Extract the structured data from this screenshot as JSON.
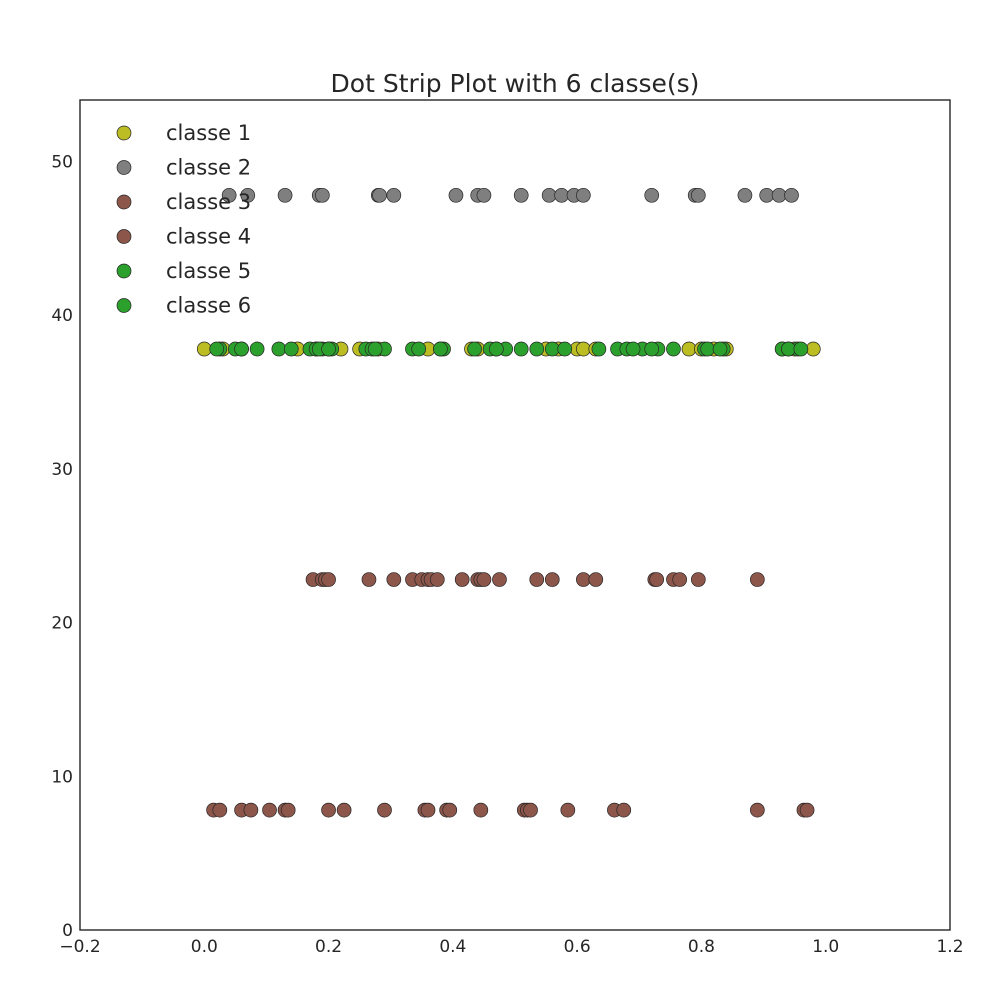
{
  "chart_data": {
    "type": "scatter",
    "title": "Dot Strip Plot with 6 classe(s)",
    "xlabel": "",
    "ylabel": "",
    "xlim": [
      -0.2,
      1.2
    ],
    "ylim": [
      0,
      54
    ],
    "xticks": [
      -0.2,
      0.0,
      0.2,
      0.4,
      0.6,
      0.8,
      1.0,
      1.2
    ],
    "xtick_labels": [
      "−0.2",
      "0.0",
      "0.2",
      "0.4",
      "0.6",
      "0.8",
      "1.0",
      "1.2"
    ],
    "yticks": [
      0,
      10,
      20,
      30,
      40,
      50
    ],
    "ytick_labels": [
      "0",
      "10",
      "20",
      "30",
      "40",
      "50"
    ],
    "grid": false,
    "legend_position": "top-left",
    "series": [
      {
        "name": "classe 1",
        "color": "#bcbd22",
        "y": 37.8,
        "x": [
          0.0,
          0.03,
          0.06,
          0.15,
          0.18,
          0.2,
          0.22,
          0.25,
          0.28,
          0.36,
          0.38,
          0.43,
          0.44,
          0.47,
          0.55,
          0.57,
          0.6,
          0.61,
          0.63,
          0.78,
          0.8,
          0.82,
          0.84,
          0.93,
          0.95,
          0.98
        ]
      },
      {
        "name": "classe 2",
        "color": "#7f7f7f",
        "y": 47.8,
        "x": [
          0.04,
          0.07,
          0.13,
          0.185,
          0.19,
          0.28,
          0.282,
          0.305,
          0.405,
          0.44,
          0.45,
          0.51,
          0.555,
          0.575,
          0.595,
          0.61,
          0.72,
          0.79,
          0.795,
          0.87,
          0.905,
          0.925,
          0.945
        ]
      },
      {
        "name": "classe 3",
        "color": "#8c564b",
        "y": 22.8,
        "x": [
          0.175,
          0.19,
          0.195,
          0.2,
          0.265,
          0.305,
          0.335,
          0.35,
          0.36,
          0.365,
          0.375,
          0.415,
          0.44,
          0.445,
          0.45,
          0.475,
          0.535,
          0.56,
          0.61,
          0.63,
          0.725,
          0.728,
          0.755,
          0.765,
          0.795,
          0.89
        ]
      },
      {
        "name": "classe 4",
        "color": "#8c564b",
        "y": 7.8,
        "x": [
          0.015,
          0.025,
          0.06,
          0.075,
          0.105,
          0.13,
          0.135,
          0.2,
          0.225,
          0.29,
          0.355,
          0.36,
          0.39,
          0.395,
          0.445,
          0.515,
          0.52,
          0.525,
          0.585,
          0.66,
          0.675,
          0.89,
          0.965,
          0.97
        ]
      },
      {
        "name": "classe 5",
        "color": "#2ca02c",
        "y": 37.8,
        "x": [
          0.025,
          0.05,
          0.085,
          0.12,
          0.14,
          0.17,
          0.19,
          0.205,
          0.26,
          0.29,
          0.335,
          0.385,
          0.46,
          0.485,
          0.51,
          0.535,
          0.56,
          0.58,
          0.665,
          0.68,
          0.705,
          0.73,
          0.755,
          0.805,
          0.835,
          0.93,
          0.94,
          0.955
        ]
      },
      {
        "name": "classe 6",
        "color": "#2ca02c",
        "y": 37.8,
        "x": [
          0.02,
          0.06,
          0.18,
          0.185,
          0.2,
          0.27,
          0.275,
          0.345,
          0.38,
          0.435,
          0.47,
          0.635,
          0.69,
          0.72,
          0.81,
          0.83,
          0.94,
          0.96
        ]
      }
    ]
  }
}
